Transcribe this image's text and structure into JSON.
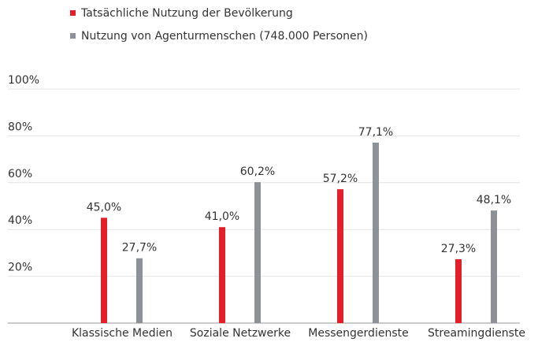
{
  "chart_data": {
    "type": "bar",
    "categories": [
      "Klassische Medien",
      "Soziale Netzwerke",
      "Messengerdienste",
      "Streamingdienste"
    ],
    "series": [
      {
        "name": "Tatsächliche Nutzung der Bevölkerung",
        "color": "#e3202a",
        "values": [
          45.0,
          41.0,
          57.2,
          27.3
        ],
        "value_labels": [
          "45,0%",
          "41,0%",
          "57,2%",
          "27,3%"
        ]
      },
      {
        "name": "Nutzung von Agenturmenschen (748.000 Personen)",
        "color": "#8c9298",
        "values": [
          27.7,
          60.2,
          77.1,
          48.1
        ],
        "value_labels": [
          "27,7%",
          "60,2%",
          "77,1%",
          "48,1%"
        ]
      }
    ],
    "ylim": [
      0,
      100
    ],
    "yticks": [
      {
        "value": 20,
        "label": "20%"
      },
      {
        "value": 40,
        "label": "40%"
      },
      {
        "value": 60,
        "label": "60%"
      },
      {
        "value": 80,
        "label": "80%"
      },
      {
        "value": 100,
        "label": "100%"
      }
    ],
    "grid": true
  }
}
